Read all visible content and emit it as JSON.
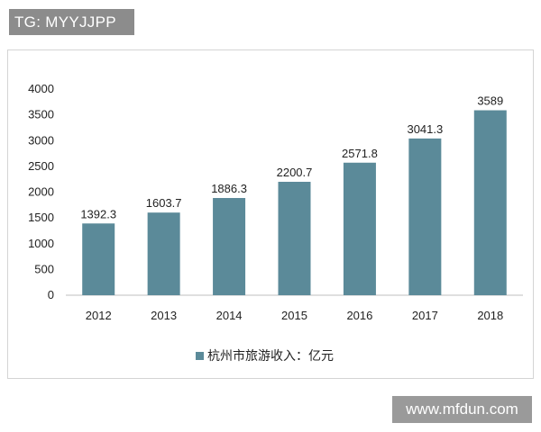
{
  "banner": {
    "text": "TG: MYYJJPP"
  },
  "watermark": {
    "text": "www.mfdun.com"
  },
  "chart_data": {
    "type": "bar",
    "categories": [
      "2012",
      "2013",
      "2014",
      "2015",
      "2016",
      "2017",
      "2018"
    ],
    "values": [
      1392.3,
      1603.7,
      1886.3,
      2200.7,
      2571.8,
      3041.3,
      3589
    ],
    "value_labels": [
      "1392.3",
      "1603.7",
      "1886.3",
      "2200.7",
      "2571.8",
      "3041.3",
      "3589"
    ],
    "yticks": [
      "0",
      "500",
      "1000",
      "1500",
      "2000",
      "2500",
      "3000",
      "3500",
      "4000"
    ],
    "ylim": [
      0,
      4000
    ],
    "grid": false,
    "legend": {
      "position": "bottom-center",
      "label": "杭州市旅游收入：亿元"
    },
    "bar_color": "#5b8a99"
  }
}
